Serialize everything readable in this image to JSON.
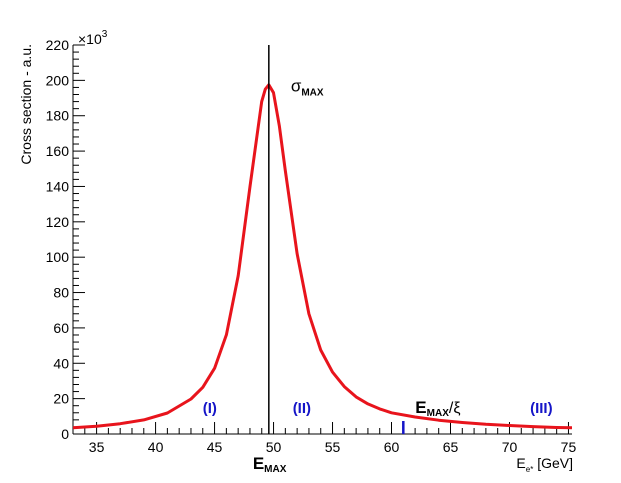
{
  "chart_data": {
    "type": "line",
    "title": "",
    "xlabel": "E",
    "xlabel_sub": "e*",
    "xlabel_unit": " [GeV]",
    "ylabel": "Cross section - a.u.",
    "y_multiplier": "×10",
    "y_multiplier_exp": "3",
    "xlim": [
      33,
      75.3
    ],
    "ylim": [
      0,
      220
    ],
    "x_ticks": [
      35,
      40,
      45,
      50,
      55,
      60,
      65,
      70,
      75
    ],
    "y_ticks": [
      0,
      20,
      40,
      60,
      80,
      100,
      120,
      140,
      160,
      180,
      200,
      220
    ],
    "grid": false,
    "series": [
      {
        "color": "#e8141c",
        "x": [
          33,
          35,
          37,
          39,
          41,
          43,
          44,
          45,
          46,
          47,
          48,
          49,
          49.3,
          49.6,
          50,
          50.5,
          51,
          52,
          53,
          54,
          55,
          56,
          57,
          58,
          59,
          60,
          62,
          64,
          66,
          68,
          70,
          72,
          74,
          75.3
        ],
        "y": [
          3.5,
          4.4,
          5.8,
          8.0,
          11.9,
          19.8,
          26.4,
          37.2,
          56.1,
          89.5,
          140,
          188,
          195,
          197.5,
          193,
          174,
          149,
          102,
          68,
          47.5,
          35,
          26.8,
          21,
          17,
          14.2,
          12,
          9.6,
          7.8,
          6.5,
          5.5,
          4.8,
          4.2,
          3.7,
          3.5
        ]
      }
    ],
    "annotations": {
      "e_max_x": 49.6,
      "e_max_label": "E",
      "e_max_sub": "MAX",
      "sigma_max_label": "σ",
      "sigma_max_sub": "MAX",
      "e_max_xi_x": 61,
      "e_max_xi_label": "E",
      "e_max_xi_sub": "MAX",
      "e_max_xi_suffix": "/ξ",
      "regions": [
        {
          "label": "(I)",
          "x": 44.6
        },
        {
          "label": "(II)",
          "x": 52.4
        },
        {
          "label": "(III)",
          "x": 72.7
        }
      ]
    }
  }
}
